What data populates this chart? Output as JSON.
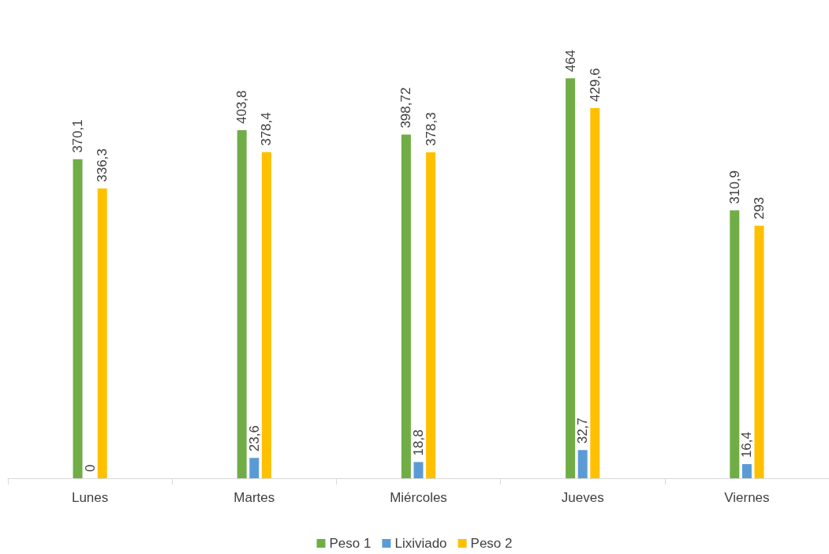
{
  "chart_data": {
    "type": "bar",
    "categories": [
      "Lunes",
      "Martes",
      "Miércoles",
      "Jueves",
      "Viernes"
    ],
    "series": [
      {
        "name": "Peso 1",
        "color": "#70ad47",
        "values": [
          370.1,
          403.8,
          398.72,
          464,
          310.9
        ],
        "value_labels": [
          "370,1",
          "403,8",
          "398,72",
          "464",
          "310,9"
        ]
      },
      {
        "name": "Lixiviado",
        "color": "#5b9bd5",
        "values": [
          0,
          23.6,
          18.8,
          32.7,
          16.4
        ],
        "value_labels": [
          "0",
          "23,6",
          "18,8",
          "32,7",
          "16,4"
        ]
      },
      {
        "name": "Peso 2",
        "color": "#ffc000",
        "values": [
          336.3,
          378.4,
          378.3,
          429.6,
          293
        ],
        "value_labels": [
          "336,3",
          "378,4",
          "378,3",
          "429,6",
          "293"
        ]
      }
    ],
    "legend": "bottom",
    "grid": false,
    "tick_labels": "x"
  }
}
